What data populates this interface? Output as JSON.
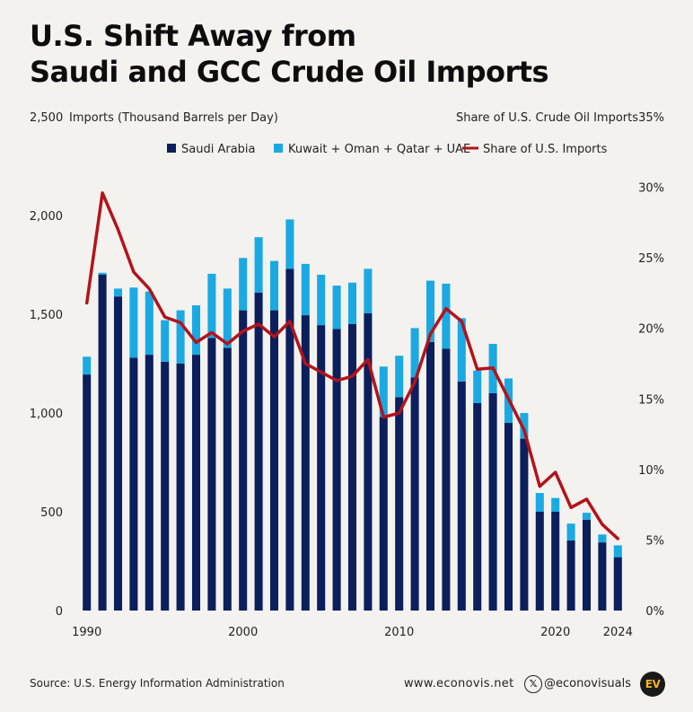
{
  "title_line1": "U.S. Shift Away from",
  "title_line2": "Saudi and GCC Crude Oil Imports",
  "footer": {
    "source": "Source: U.S. Energy Information Administration",
    "website": "www.econovis.net",
    "x_glyph": "𝕏",
    "handle": "@econovisuals",
    "logo": "EV"
  },
  "colors": {
    "saudi": "#0b1f5c",
    "others": "#1aa9e3",
    "share": "#b3131b"
  },
  "chart_data": {
    "type": "bar",
    "stacked": true,
    "y_axis_left_label": "Imports (Thousand Barrels per Day)",
    "y_axis_right_label": "Share of U.S. Crude Oil Imports",
    "left_ticks": [
      "0",
      "500",
      "1,000",
      "1,500",
      "2,000",
      "2,500"
    ],
    "right_ticks": [
      "0%",
      "5%",
      "10%",
      "15%",
      "20%",
      "25%",
      "30%",
      "35%"
    ],
    "x_ticks": [
      "1990",
      "2000",
      "2010",
      "2020",
      "2024"
    ],
    "x_tick_values": [
      1990,
      2000,
      2010,
      2020,
      2024
    ],
    "ylim_left": [
      0,
      2500
    ],
    "ylim_right": [
      0,
      35
    ],
    "legend_position": "top",
    "years": [
      1990,
      1991,
      1992,
      1993,
      1994,
      1995,
      1996,
      1997,
      1998,
      1999,
      2000,
      2001,
      2002,
      2003,
      2004,
      2005,
      2006,
      2007,
      2008,
      2009,
      2010,
      2011,
      2012,
      2013,
      2014,
      2015,
      2016,
      2017,
      2018,
      2019,
      2020,
      2021,
      2022,
      2023,
      2024
    ],
    "series": [
      {
        "name": "Saudi Arabia",
        "kind": "bar",
        "values": [
          1195,
          1700,
          1590,
          1280,
          1295,
          1260,
          1250,
          1295,
          1380,
          1330,
          1520,
          1610,
          1520,
          1730,
          1495,
          1445,
          1425,
          1450,
          1505,
          980,
          1080,
          1180,
          1360,
          1325,
          1160,
          1050,
          1100,
          950,
          870,
          500,
          500,
          355,
          460,
          345,
          270
        ]
      },
      {
        "name": "Kuwait + Oman + Qatar + UAE",
        "kind": "bar",
        "values": [
          90,
          10,
          40,
          355,
          320,
          210,
          270,
          250,
          325,
          300,
          265,
          280,
          250,
          250,
          260,
          255,
          220,
          210,
          225,
          255,
          210,
          250,
          310,
          330,
          320,
          165,
          250,
          225,
          130,
          95,
          70,
          85,
          35,
          40,
          60
        ]
      },
      {
        "name": "Share of U.S. Imports",
        "kind": "line",
        "axis": "right",
        "values": [
          21.8,
          29.6,
          27.0,
          24.0,
          22.8,
          20.8,
          20.4,
          19.0,
          19.7,
          18.9,
          19.8,
          20.3,
          19.4,
          20.5,
          17.5,
          16.9,
          16.3,
          16.6,
          17.8,
          13.7,
          14.0,
          16.2,
          19.6,
          21.4,
          20.5,
          17.1,
          17.2,
          15.0,
          12.8,
          8.8,
          9.8,
          7.3,
          7.9,
          6.1,
          5.1
        ]
      }
    ]
  }
}
